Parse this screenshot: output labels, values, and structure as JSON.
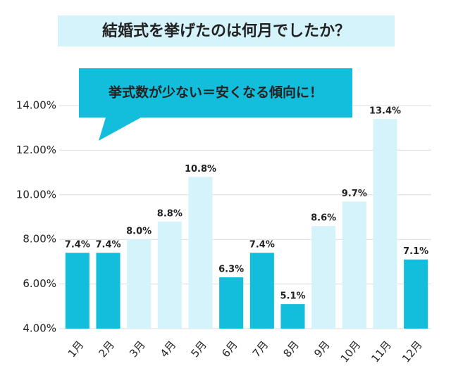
{
  "chart_data": {
    "type": "bar",
    "title": "結婚式を挙げたのは何月でしたか？",
    "annotation": "挙式数が少ない＝安くなる傾向に！",
    "categories": [
      "1月",
      "2月",
      "3月",
      "4月",
      "5月",
      "6月",
      "7月",
      "8月",
      "9月",
      "10月",
      "11月",
      "12月"
    ],
    "values": [
      7.4,
      7.4,
      8.0,
      8.8,
      10.8,
      6.3,
      7.4,
      5.1,
      8.6,
      9.7,
      13.4,
      7.1
    ],
    "value_labels": [
      "7.4%",
      "7.4%",
      "8.0%",
      "8.8%",
      "10.8%",
      "6.3%",
      "7.4%",
      "5.1%",
      "8.6%",
      "9.7%",
      "13.4%",
      "7.1%"
    ],
    "colors": [
      "#12bedc",
      "#12bedc",
      "#d4f3fb",
      "#d4f3fb",
      "#d4f3fb",
      "#12bedc",
      "#12bedc",
      "#12bedc",
      "#d4f3fb",
      "#d4f3fb",
      "#d4f3fb",
      "#12bedc"
    ],
    "ylim": [
      4,
      15
    ],
    "yticks": [
      {
        "value": 4,
        "label": "4.00%"
      },
      {
        "value": 6,
        "label": "6.00%"
      },
      {
        "value": 8,
        "label": "8.00%"
      },
      {
        "value": 10,
        "label": "10.00%"
      },
      {
        "value": 12,
        "label": "12.00%"
      },
      {
        "value": 14,
        "label": "14.00%"
      }
    ],
    "grid": true
  }
}
